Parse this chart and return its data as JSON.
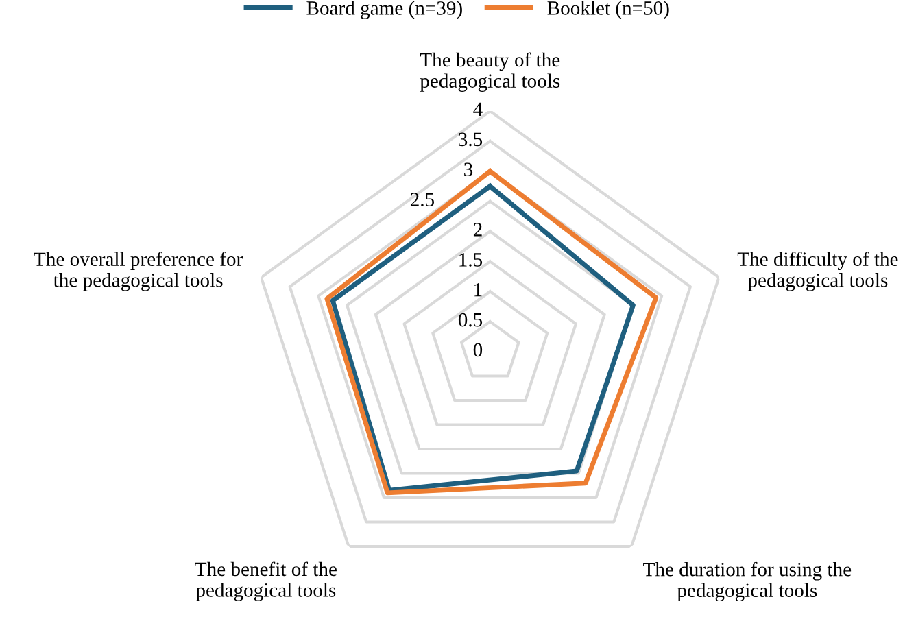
{
  "chart_data": {
    "type": "radar",
    "categories": [
      "The beauty of the\npedagogical tools",
      "The difficulty of the\npedagogical tools",
      "The duration for using the\npedagogical tools",
      "The benefit of the\npedagogical tools",
      "The overall preference for\nthe pedagogical tools"
    ],
    "series": [
      {
        "name": "Board game (n=39)",
        "color": "#1f5f7f",
        "values": [
          2.75,
          2.5,
          2.45,
          2.85,
          2.75
        ]
      },
      {
        "name": "Booklet (n=50)",
        "color": "#ed7d31",
        "values": [
          3.0,
          2.9,
          2.7,
          2.9,
          2.85
        ]
      }
    ],
    "ylim": [
      0,
      4
    ],
    "yticks": [
      0,
      0.5,
      1,
      1.5,
      2,
      2.5,
      3,
      3.5,
      4
    ],
    "grid": true,
    "legend": "top",
    "marker": "none",
    "line_style": "solid"
  }
}
